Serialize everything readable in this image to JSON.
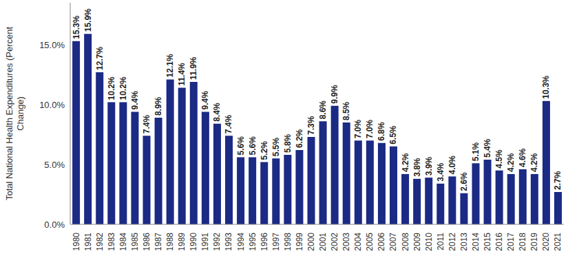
{
  "chart_data": {
    "type": "bar",
    "y_label": "Total National Health Expenditures (Percent Change)",
    "categories": [
      "1980",
      "1981",
      "1982",
      "1983",
      "1984",
      "1985",
      "1986",
      "1987",
      "1988",
      "1989",
      "1990",
      "1991",
      "1992",
      "1993",
      "1994",
      "1995",
      "1996",
      "1997",
      "1998",
      "1999",
      "2000",
      "2001",
      "2002",
      "2003",
      "2004",
      "2005",
      "2006",
      "2007",
      "2008",
      "2009",
      "2010",
      "2011",
      "2012",
      "2013",
      "2014",
      "2015",
      "2016",
      "2017",
      "2018",
      "2019",
      "2020",
      "2021"
    ],
    "values": [
      15.3,
      15.9,
      12.7,
      10.2,
      10.2,
      9.4,
      7.4,
      8.9,
      12.1,
      11.4,
      11.9,
      9.4,
      8.4,
      7.4,
      5.6,
      5.6,
      5.2,
      5.5,
      5.8,
      6.2,
      7.3,
      8.6,
      9.9,
      8.5,
      7.0,
      7.0,
      6.8,
      6.5,
      4.2,
      3.8,
      3.9,
      3.4,
      4.0,
      2.6,
      5.1,
      5.4,
      4.5,
      4.2,
      4.6,
      4.2,
      10.3,
      2.7
    ],
    "value_labels": [
      "15.3%",
      "15.9%",
      "12.7%",
      "10.2%",
      "10.2%",
      "9.4%",
      "7.4%",
      "8.9%",
      "12.1%",
      "11.4%",
      "11.9%",
      "9.4%",
      "8.4%",
      "7.4%",
      "5.6%",
      "5.6%",
      "5.2%",
      "5.5%",
      "5.8%",
      "6.2%",
      "7.3%",
      "8.6%",
      "9.9%",
      "8.5%",
      "7.0%",
      "7.0%",
      "6.8%",
      "6.5%",
      "4.2%",
      "3.8%",
      "3.9%",
      "3.4%",
      "4.0%",
      "2.6%",
      "5.1%",
      "5.4%",
      "4.5%",
      "4.2%",
      "4.6%",
      "4.2%",
      "10.3%",
      "2.7%"
    ],
    "color": "#1b2a84",
    "ylim": [
      0,
      18.5
    ],
    "yticks": [
      {
        "value": 0,
        "label": "0.0%"
      },
      {
        "value": 5,
        "label": "5.0%"
      },
      {
        "value": 10,
        "label": "10.0%"
      },
      {
        "value": 15,
        "label": "15.0%"
      }
    ],
    "grid": false,
    "data_labels": true
  }
}
